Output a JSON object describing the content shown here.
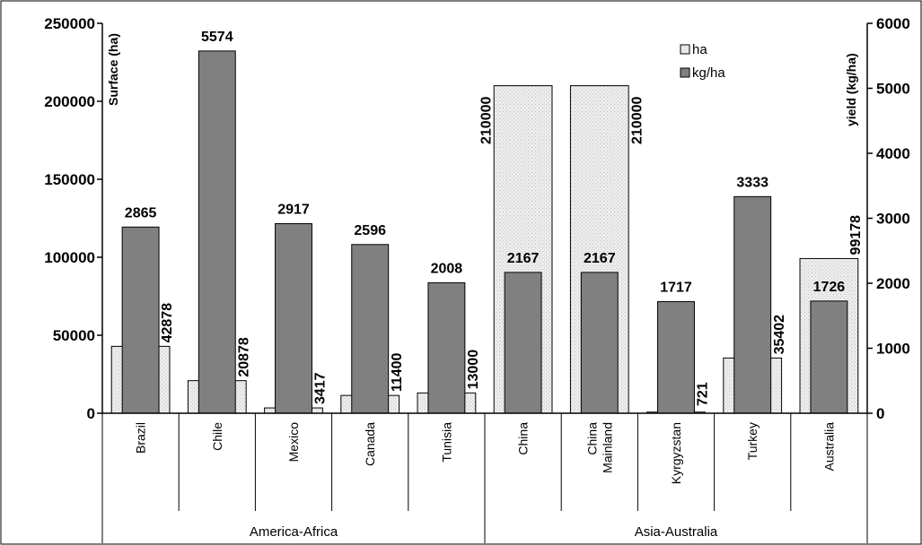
{
  "chart_data": {
    "type": "bar",
    "title": "",
    "groups": [
      {
        "label": "America-Africa",
        "categories": [
          "Brazil",
          "Chile",
          "Mexico",
          "Canada",
          "Tunisia"
        ]
      },
      {
        "label": "Asia-Australia",
        "categories": [
          "China",
          "China Mainland",
          "Kyrgyzstan",
          "Turkey",
          "Australia"
        ]
      }
    ],
    "categories": [
      "Brazil",
      "Chile",
      "Mexico",
      "Canada",
      "Tunisia",
      "China",
      "China Mainland",
      "Kyrgyzstan",
      "Turkey",
      "Australia"
    ],
    "category_display": [
      "Brazil",
      "Chile",
      "Mexico",
      "Canada",
      "Tunisia",
      "China",
      "China\nMainland",
      "Kyrgyzstan",
      "Turkey",
      "Australia"
    ],
    "series": [
      {
        "name": "ha",
        "axis": "left",
        "color": "#e8e8e8",
        "values": [
          42878,
          20878,
          3417,
          11400,
          13000,
          210000,
          210000,
          721,
          35402,
          99178
        ]
      },
      {
        "name": "kg/ha",
        "axis": "right",
        "color": "#808080",
        "values": [
          2865,
          5574,
          2917,
          2596,
          2008,
          2167,
          2167,
          1717,
          3333,
          1726
        ]
      }
    ],
    "ylabel": "Surface (ha)",
    "y2label": "yield (kg/ha)",
    "ylim": [
      0,
      250000
    ],
    "y2lim": [
      0,
      6000
    ],
    "yticks": [
      "0",
      "50000",
      "100000",
      "150000",
      "200000",
      "250000"
    ],
    "y2ticks": [
      "0",
      "1000",
      "2000",
      "3000",
      "4000",
      "5000",
      "6000"
    ],
    "grid": false,
    "legend": {
      "position": "top-right",
      "entries": [
        "ha",
        "kg/ha"
      ]
    }
  }
}
